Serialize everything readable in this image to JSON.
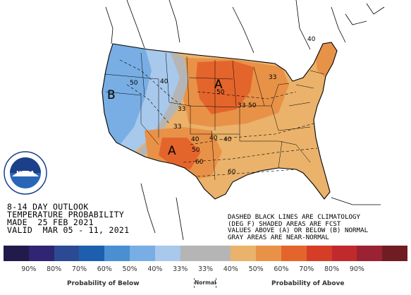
{
  "map": {
    "contour_labels": [
      "50",
      "40",
      "33",
      "40",
      "50",
      "60",
      "33",
      "40",
      "50",
      "40",
      "60",
      "33",
      "50",
      "40",
      "33"
    ],
    "region_letters": [
      "B",
      "A",
      "A"
    ]
  },
  "outlook": {
    "line1": "8-14 DAY OUTLOOK",
    "line2": "TEMPERATURE PROBABILITY",
    "line3": "MADE  25 FEB 2021",
    "line4": "VALID  MAR 05 - 11, 2021"
  },
  "notes": {
    "line1": "DASHED BLACK LINES ARE CLIMATOLOGY",
    "line2": "(DEG F) SHADED AREAS ARE FCST",
    "line3": "VALUES ABOVE (A) OR BELOW (B) NORMAL",
    "line4": "GRAY AREAS ARE NEAR-NORMAL"
  },
  "legend": {
    "colors": [
      "#211b4b",
      "#2f2572",
      "#2c4a93",
      "#1d5fae",
      "#4a8fd2",
      "#78aee3",
      "#a8c8ec",
      "#b5b5b5",
      "#b5b5b5",
      "#eab26b",
      "#e89248",
      "#e4652c",
      "#d63d26",
      "#c12a2d",
      "#9a2233",
      "#6f1d23"
    ],
    "percent_labels": [
      "90%",
      "80%",
      "70%",
      "60%",
      "50%",
      "40%",
      "33%",
      "33%",
      "40%",
      "50%",
      "60%",
      "70%",
      "80%",
      "90%"
    ],
    "below_label": "Probability of Below",
    "normal_label": "Normal",
    "above_label": "Probability of Above"
  },
  "logo": {
    "text": "NOAA"
  }
}
